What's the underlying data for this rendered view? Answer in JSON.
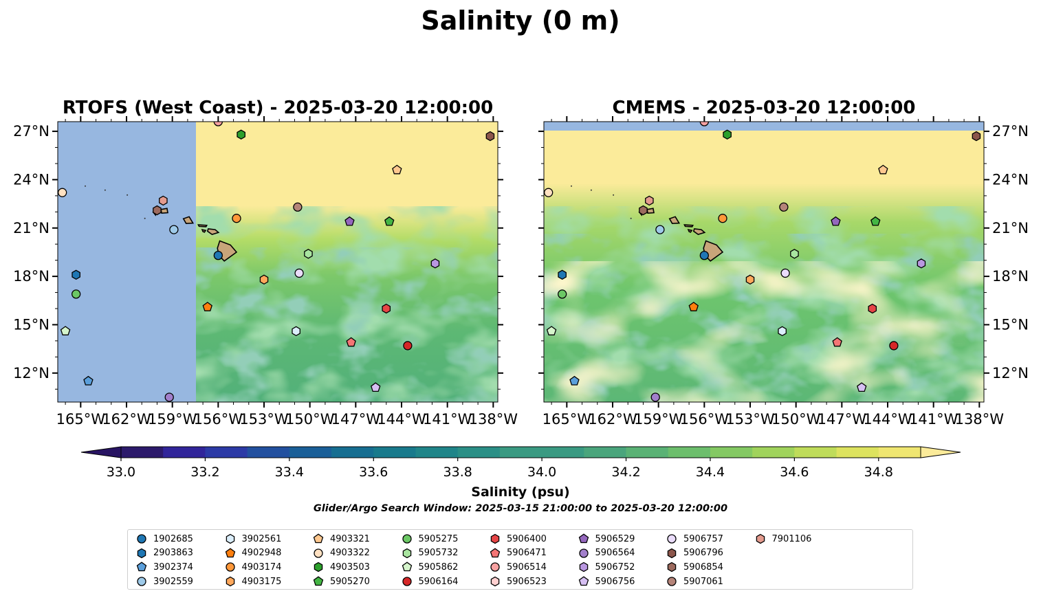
{
  "title": "Salinity (0 m)",
  "panels": [
    {
      "id": "rtofs",
      "title": "RTOFS (West Coast) - 2025-03-20 12:00:00",
      "yaxis_side": "left"
    },
    {
      "id": "cmems",
      "title": "CMEMS - 2025-03-20 12:00:00",
      "yaxis_side": "right"
    }
  ],
  "map_extent": {
    "lon": [
      -166.5,
      -137.7
    ],
    "lat": [
      10.2,
      27.6
    ]
  },
  "lon_ticks": [
    -165,
    -162,
    -159,
    -156,
    -153,
    -150,
    -147,
    -144,
    -141,
    -138
  ],
  "lon_tick_labels": [
    "165°W",
    "162°W",
    "159°W",
    "156°W",
    "153°W",
    "150°W",
    "147°W",
    "144°W",
    "141°W",
    "138°W"
  ],
  "lat_ticks": [
    12,
    15,
    18,
    21,
    24,
    27
  ],
  "lat_tick_labels": [
    "12°N",
    "15°N",
    "18°N",
    "21°N",
    "24°N",
    "27°N"
  ],
  "colorbar": {
    "label": "Salinity (psu)",
    "range": [
      33.0,
      34.9
    ],
    "step": 0.1,
    "tick_values": [
      33.0,
      33.2,
      33.4,
      33.6,
      33.8,
      34.0,
      34.2,
      34.4,
      34.6,
      34.8
    ],
    "tick_labels": [
      "33.0",
      "33.2",
      "33.4",
      "33.6",
      "33.8",
      "34.0",
      "34.2",
      "34.4",
      "34.6",
      "34.8"
    ],
    "extend": "both"
  },
  "search_window": "Glider/Argo Search Window: 2025-03-15 21:00:00 to 2025-03-20 12:00:00",
  "colors": {
    "ocean_nodata": "#97b7e0",
    "land": "#c8a57a",
    "high_salinity": "#fbeb9a",
    "mid": "#6cc36a",
    "low": "#4aa882"
  },
  "floats": [
    {
      "id": "1902685",
      "marker": "circle",
      "color": "#1f77b4",
      "lon": -156.0,
      "lat": 19.3
    },
    {
      "id": "2903863",
      "marker": "hexagon",
      "color": "#1f77b4",
      "lon": -165.3,
      "lat": 18.1
    },
    {
      "id": "3902374",
      "marker": "pentagon",
      "color": "#5b9fdb",
      "lon": -164.5,
      "lat": 11.5
    },
    {
      "id": "3902559",
      "marker": "circle",
      "color": "#9ecae9",
      "lon": -158.9,
      "lat": 20.9
    },
    {
      "id": "3902561",
      "marker": "hexagon",
      "color": "#dbeefb",
      "lon": -150.9,
      "lat": 14.6
    },
    {
      "id": "4902948",
      "marker": "pentagon",
      "color": "#ff7f0e",
      "lon": -156.7,
      "lat": 16.1
    },
    {
      "id": "4903174",
      "marker": "circle",
      "color": "#ff983a",
      "lon": -154.8,
      "lat": 21.6
    },
    {
      "id": "4903175",
      "marker": "hexagon",
      "color": "#ffa85c",
      "lon": -153.0,
      "lat": 17.8
    },
    {
      "id": "4903321",
      "marker": "pentagon",
      "color": "#ffc88f",
      "lon": -144.3,
      "lat": 24.6
    },
    {
      "id": "4903322",
      "marker": "circle",
      "color": "#ffe1c2",
      "lon": -166.2,
      "lat": 23.2
    },
    {
      "id": "4903503",
      "marker": "hexagon",
      "color": "#2ca02c",
      "lon": -154.5,
      "lat": 26.8
    },
    {
      "id": "5905270",
      "marker": "pentagon",
      "color": "#44b544",
      "lon": -144.8,
      "lat": 21.4
    },
    {
      "id": "5905275",
      "marker": "circle",
      "color": "#6cc865",
      "lon": -165.3,
      "lat": 16.9
    },
    {
      "id": "5905732",
      "marker": "hexagon",
      "color": "#a9e5a0",
      "lon": -150.1,
      "lat": 19.4
    },
    {
      "id": "5905862",
      "marker": "pentagon",
      "color": "#d6f5cc",
      "lon": -166.0,
      "lat": 14.6
    },
    {
      "id": "5906164",
      "marker": "circle",
      "color": "#d62728",
      "lon": -143.6,
      "lat": 13.7
    },
    {
      "id": "5906400",
      "marker": "hexagon",
      "color": "#e64546",
      "lon": -145.0,
      "lat": 16.0
    },
    {
      "id": "5906471",
      "marker": "pentagon",
      "color": "#f47575",
      "lon": -147.3,
      "lat": 13.9
    },
    {
      "id": "5906514",
      "marker": "circle",
      "color": "#f7a1a1",
      "lon": -156.0,
      "lat": 27.6
    },
    {
      "id": "5906523",
      "marker": "hexagon",
      "color": "#ffd0d0",
      "lon": -155.2,
      "lat": 27.9
    },
    {
      "id": "5906529",
      "marker": "pentagon",
      "color": "#9467bd",
      "lon": -147.4,
      "lat": 21.4
    },
    {
      "id": "5906564",
      "marker": "circle",
      "color": "#a27fcb",
      "lon": -159.2,
      "lat": 10.5
    },
    {
      "id": "5906752",
      "marker": "hexagon",
      "color": "#b997e0",
      "lon": -141.8,
      "lat": 18.8
    },
    {
      "id": "5906756",
      "marker": "pentagon",
      "color": "#d6bff2",
      "lon": -145.7,
      "lat": 11.1
    },
    {
      "id": "5906757",
      "marker": "circle",
      "color": "#eadcfb",
      "lon": -150.7,
      "lat": 18.2
    },
    {
      "id": "5906796",
      "marker": "hexagon",
      "color": "#8c564b",
      "lon": -138.2,
      "lat": 26.7
    },
    {
      "id": "5906854",
      "marker": "hexagon",
      "color": "#9c6a5e",
      "lon": -160.0,
      "lat": 22.1
    },
    {
      "id": "5907061",
      "marker": "circle",
      "color": "#b58479",
      "lon": -150.8,
      "lat": 22.3
    },
    {
      "id": "7901106",
      "marker": "hexagon",
      "color": "#e49b8e",
      "lon": -159.6,
      "lat": 22.7
    }
  ]
}
